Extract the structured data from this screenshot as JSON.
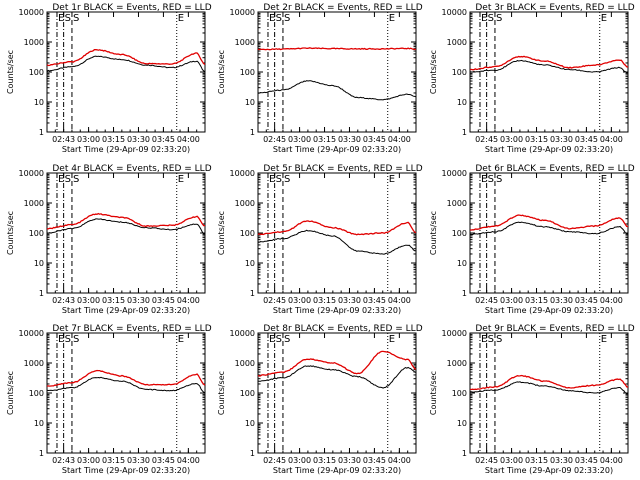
{
  "chart_data": {
    "type": "line",
    "shared": {
      "ylabel": "Counts/sec",
      "xlabel": "Start Time (29-Apr-09 02:33:20)",
      "yscale": "log",
      "ylim": [
        1,
        10000
      ],
      "yticks": [
        1,
        10,
        100,
        1000,
        10000
      ],
      "yticklabels": [
        "1",
        "10",
        "100",
        "1000",
        "10000"
      ],
      "xlim": [
        "02:35",
        "04:10"
      ],
      "line_colors": {
        "events": "#000000",
        "lld": "#e00000"
      },
      "markers": [
        {
          "label": "E",
          "time": "02:41",
          "style": "dashdot"
        },
        {
          "label": "S",
          "time": "02:45",
          "style": "dashdot"
        },
        {
          "label": "S",
          "time": "02:50",
          "style": "dashed"
        },
        {
          "label": "E",
          "time": "03:53",
          "style": "dotted"
        }
      ]
    },
    "panels": [
      {
        "title": "Det 1r BLACK = Events, RED = LLD",
        "xticks": [
          "02:43",
          "03:00",
          "03:15",
          "03:30",
          "03:45",
          "04:00"
        ],
        "times": [
          0,
          15,
          30,
          45,
          60,
          75,
          90,
          95
        ],
        "series": [
          {
            "name": "Events",
            "values": [
              110,
              150,
              330,
              260,
              170,
              140,
              230,
              100
            ]
          },
          {
            "name": "LLD",
            "values": [
              170,
              220,
              550,
              380,
              190,
              185,
              420,
              180
            ]
          }
        ]
      },
      {
        "title": "Det 2r BLACK = Events, RED = LLD",
        "xticks": [
          "02:45",
          "03:00",
          "03:15",
          "03:30",
          "03:45",
          "04:00"
        ],
        "times": [
          0,
          15,
          30,
          45,
          60,
          75,
          90,
          95
        ],
        "series": [
          {
            "name": "Events",
            "values": [
              20,
              25,
              50,
              35,
              14,
              12,
              18,
              15
            ]
          },
          {
            "name": "LLD",
            "values": [
              560,
              580,
              620,
              600,
              590,
              590,
              610,
              580
            ]
          }
        ]
      },
      {
        "title": "Det 3r BLACK = Events, RED = LLD",
        "xticks": [
          "02:45",
          "03:00",
          "03:15",
          "03:30",
          "03:45",
          "04:00"
        ],
        "times": [
          0,
          15,
          30,
          45,
          60,
          75,
          90,
          95
        ],
        "series": [
          {
            "name": "Events",
            "values": [
              100,
              115,
              240,
              170,
              120,
              100,
              140,
              90
            ]
          },
          {
            "name": "LLD",
            "values": [
              120,
              150,
              330,
              230,
              140,
              170,
              250,
              150
            ]
          }
        ]
      },
      {
        "title": "Det 4r BLACK = Events, RED = LLD",
        "xticks": [
          "02:43",
          "03:00",
          "03:15",
          "03:30",
          "03:45",
          "04:00"
        ],
        "times": [
          0,
          15,
          30,
          45,
          60,
          75,
          90,
          95
        ],
        "series": [
          {
            "name": "Events",
            "values": [
              100,
              140,
              290,
              230,
              150,
              130,
              200,
              90
            ]
          },
          {
            "name": "LLD",
            "values": [
              140,
              190,
              430,
              330,
              170,
              180,
              350,
              170
            ]
          }
        ]
      },
      {
        "title": "Det 5r BLACK = Events, RED = LLD",
        "xticks": [
          "02:45",
          "03:00",
          "03:15",
          "03:30",
          "03:45",
          "04:00"
        ],
        "times": [
          0,
          15,
          30,
          45,
          60,
          75,
          90,
          95
        ],
        "series": [
          {
            "name": "Events",
            "values": [
              50,
              65,
              120,
              80,
              25,
              20,
              40,
              25
            ]
          },
          {
            "name": "LLD",
            "values": [
              90,
              110,
              250,
              150,
              90,
              100,
              220,
              100
            ]
          }
        ]
      },
      {
        "title": "Det 6r BLACK = Events, RED = LLD",
        "xticks": [
          "02:45",
          "03:00",
          "03:15",
          "03:30",
          "03:45",
          "04:00"
        ],
        "times": [
          0,
          15,
          30,
          45,
          60,
          75,
          90,
          95
        ],
        "series": [
          {
            "name": "Events",
            "values": [
              90,
              110,
              230,
              160,
              110,
              95,
              160,
              90
            ]
          },
          {
            "name": "LLD",
            "values": [
              130,
              170,
              390,
              260,
              140,
              170,
              320,
              160
            ]
          }
        ]
      },
      {
        "title": "Det 7r BLACK = Events, RED = LLD",
        "xticks": [
          "02:43",
          "03:00",
          "03:15",
          "03:30",
          "03:45",
          "04:00"
        ],
        "times": [
          0,
          15,
          30,
          45,
          60,
          75,
          90,
          95
        ],
        "series": [
          {
            "name": "Events",
            "values": [
              120,
              150,
              330,
              250,
              130,
              120,
              210,
              100
            ]
          },
          {
            "name": "LLD",
            "values": [
              170,
              220,
              550,
              370,
              190,
              190,
              420,
              180
            ]
          }
        ]
      },
      {
        "title": "Det 8r BLACK = Events, RED = LLD",
        "xticks": [
          "02:45",
          "03:00",
          "03:15",
          "03:30",
          "03:45",
          "04:00"
        ],
        "times": [
          0,
          15,
          30,
          45,
          60,
          75,
          90,
          95
        ],
        "series": [
          {
            "name": "Events",
            "values": [
              250,
              320,
              800,
              600,
              350,
              150,
              700,
              500
            ]
          },
          {
            "name": "LLD",
            "values": [
              380,
              500,
              1350,
              1000,
              450,
              2400,
              1300,
              600
            ]
          }
        ]
      },
      {
        "title": "Det 9r BLACK = Events, RED = LLD",
        "xticks": [
          "02:45",
          "03:00",
          "03:15",
          "03:30",
          "03:45",
          "04:00"
        ],
        "times": [
          0,
          15,
          30,
          45,
          60,
          75,
          90,
          95
        ],
        "series": [
          {
            "name": "Events",
            "values": [
              110,
              125,
              230,
              170,
              120,
              100,
              150,
              90
            ]
          },
          {
            "name": "LLD",
            "values": [
              130,
              160,
              380,
              250,
              150,
              180,
              290,
              160
            ]
          }
        ]
      }
    ]
  }
}
